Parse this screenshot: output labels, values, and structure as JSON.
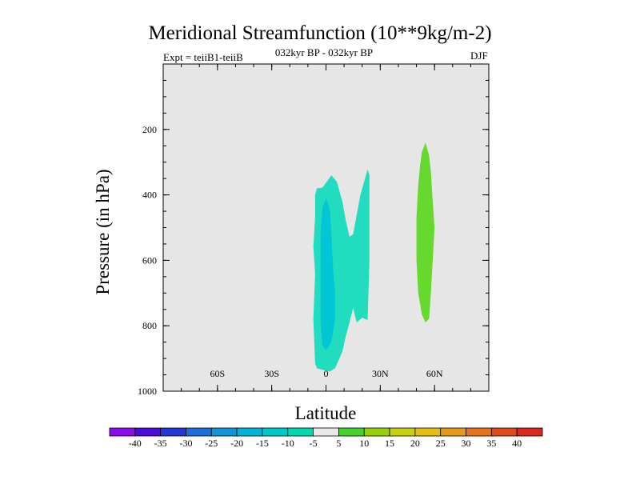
{
  "title": "Meridional Streamfunction (10**9kg/m-2)",
  "experiment": "Expt = teiiB1-teiiB",
  "time_range": "032kyr BP - 032kyr BP",
  "season": "DJF",
  "chart_data": {
    "type": "contour",
    "xlabel": "Latitude",
    "ylabel": "Pressure (in hPa)",
    "xlim": [
      -90,
      90
    ],
    "ylim": [
      1000,
      0
    ],
    "x_ticks": [
      {
        "value": -60,
        "label": "60S"
      },
      {
        "value": -30,
        "label": "30S"
      },
      {
        "value": 0,
        "label": "0"
      },
      {
        "value": 30,
        "label": "30N"
      },
      {
        "value": 60,
        "label": "60N"
      }
    ],
    "y_ticks": [
      {
        "value": 200,
        "label": "200"
      },
      {
        "value": 400,
        "label": "400"
      },
      {
        "value": 600,
        "label": "600"
      },
      {
        "value": 800,
        "label": "800"
      },
      {
        "value": 1000,
        "label": "1000"
      }
    ],
    "contour_levels": [
      -40,
      -35,
      -30,
      -25,
      -20,
      -15,
      -10,
      -5,
      5,
      10,
      15,
      20,
      25,
      30,
      35,
      40
    ],
    "colorbar_colors": [
      "#8a0ce8",
      "#4b0cd9",
      "#2436d8",
      "#1d6fdd",
      "#0f96d9",
      "#00b3d8",
      "#00c9c9",
      "#00d8b0",
      "#e8e8e8",
      "#46d22a",
      "#96d20a",
      "#c6d20f",
      "#e6be14",
      "#e69a18",
      "#e6731c",
      "#e24a1e",
      "#dc281e"
    ],
    "background_color": "#e6e6e6",
    "regions": [
      {
        "level_range": "-10 to -5",
        "color": "#22dcbf",
        "points": [
          [
            -5,
            380
          ],
          [
            -2,
            378
          ],
          [
            3,
            340
          ],
          [
            6,
            360
          ],
          [
            9,
            420
          ],
          [
            11,
            480
          ],
          [
            13,
            528
          ],
          [
            15,
            520
          ],
          [
            19,
            400
          ],
          [
            23,
            322
          ],
          [
            24,
            340
          ],
          [
            24,
            600
          ],
          [
            23,
            783
          ],
          [
            20,
            775
          ],
          [
            17,
            790
          ],
          [
            15,
            745
          ],
          [
            13,
            790
          ],
          [
            11,
            830
          ],
          [
            9,
            880
          ],
          [
            5,
            930
          ],
          [
            2,
            940
          ],
          [
            -5,
            930
          ],
          [
            -6,
            915
          ],
          [
            -7,
            780
          ],
          [
            -6,
            640
          ],
          [
            -7,
            560
          ],
          [
            -6,
            465
          ],
          [
            -6,
            400
          ]
        ]
      },
      {
        "level_range": "-15 to -10",
        "color": "#00c6d6",
        "points": [
          [
            -2,
            440
          ],
          [
            0,
            410
          ],
          [
            2,
            440
          ],
          [
            3,
            520
          ],
          [
            4,
            630
          ],
          [
            5,
            700
          ],
          [
            5,
            780
          ],
          [
            3,
            850
          ],
          [
            0,
            875
          ],
          [
            -2,
            860
          ],
          [
            -3,
            790
          ],
          [
            -3,
            700
          ],
          [
            -3,
            600
          ],
          [
            -3,
            520
          ]
        ]
      },
      {
        "level_range": "5 to 10",
        "color": "#66d82e",
        "points": [
          [
            55,
            240
          ],
          [
            57,
            280
          ],
          [
            58,
            330
          ],
          [
            59,
            420
          ],
          [
            60,
            500
          ],
          [
            59,
            600
          ],
          [
            58,
            700
          ],
          [
            57,
            778
          ],
          [
            55,
            790
          ],
          [
            53,
            765
          ],
          [
            51,
            700
          ],
          [
            50,
            600
          ],
          [
            50,
            470
          ],
          [
            51,
            370
          ],
          [
            52,
            310
          ],
          [
            53,
            270
          ]
        ]
      }
    ]
  }
}
